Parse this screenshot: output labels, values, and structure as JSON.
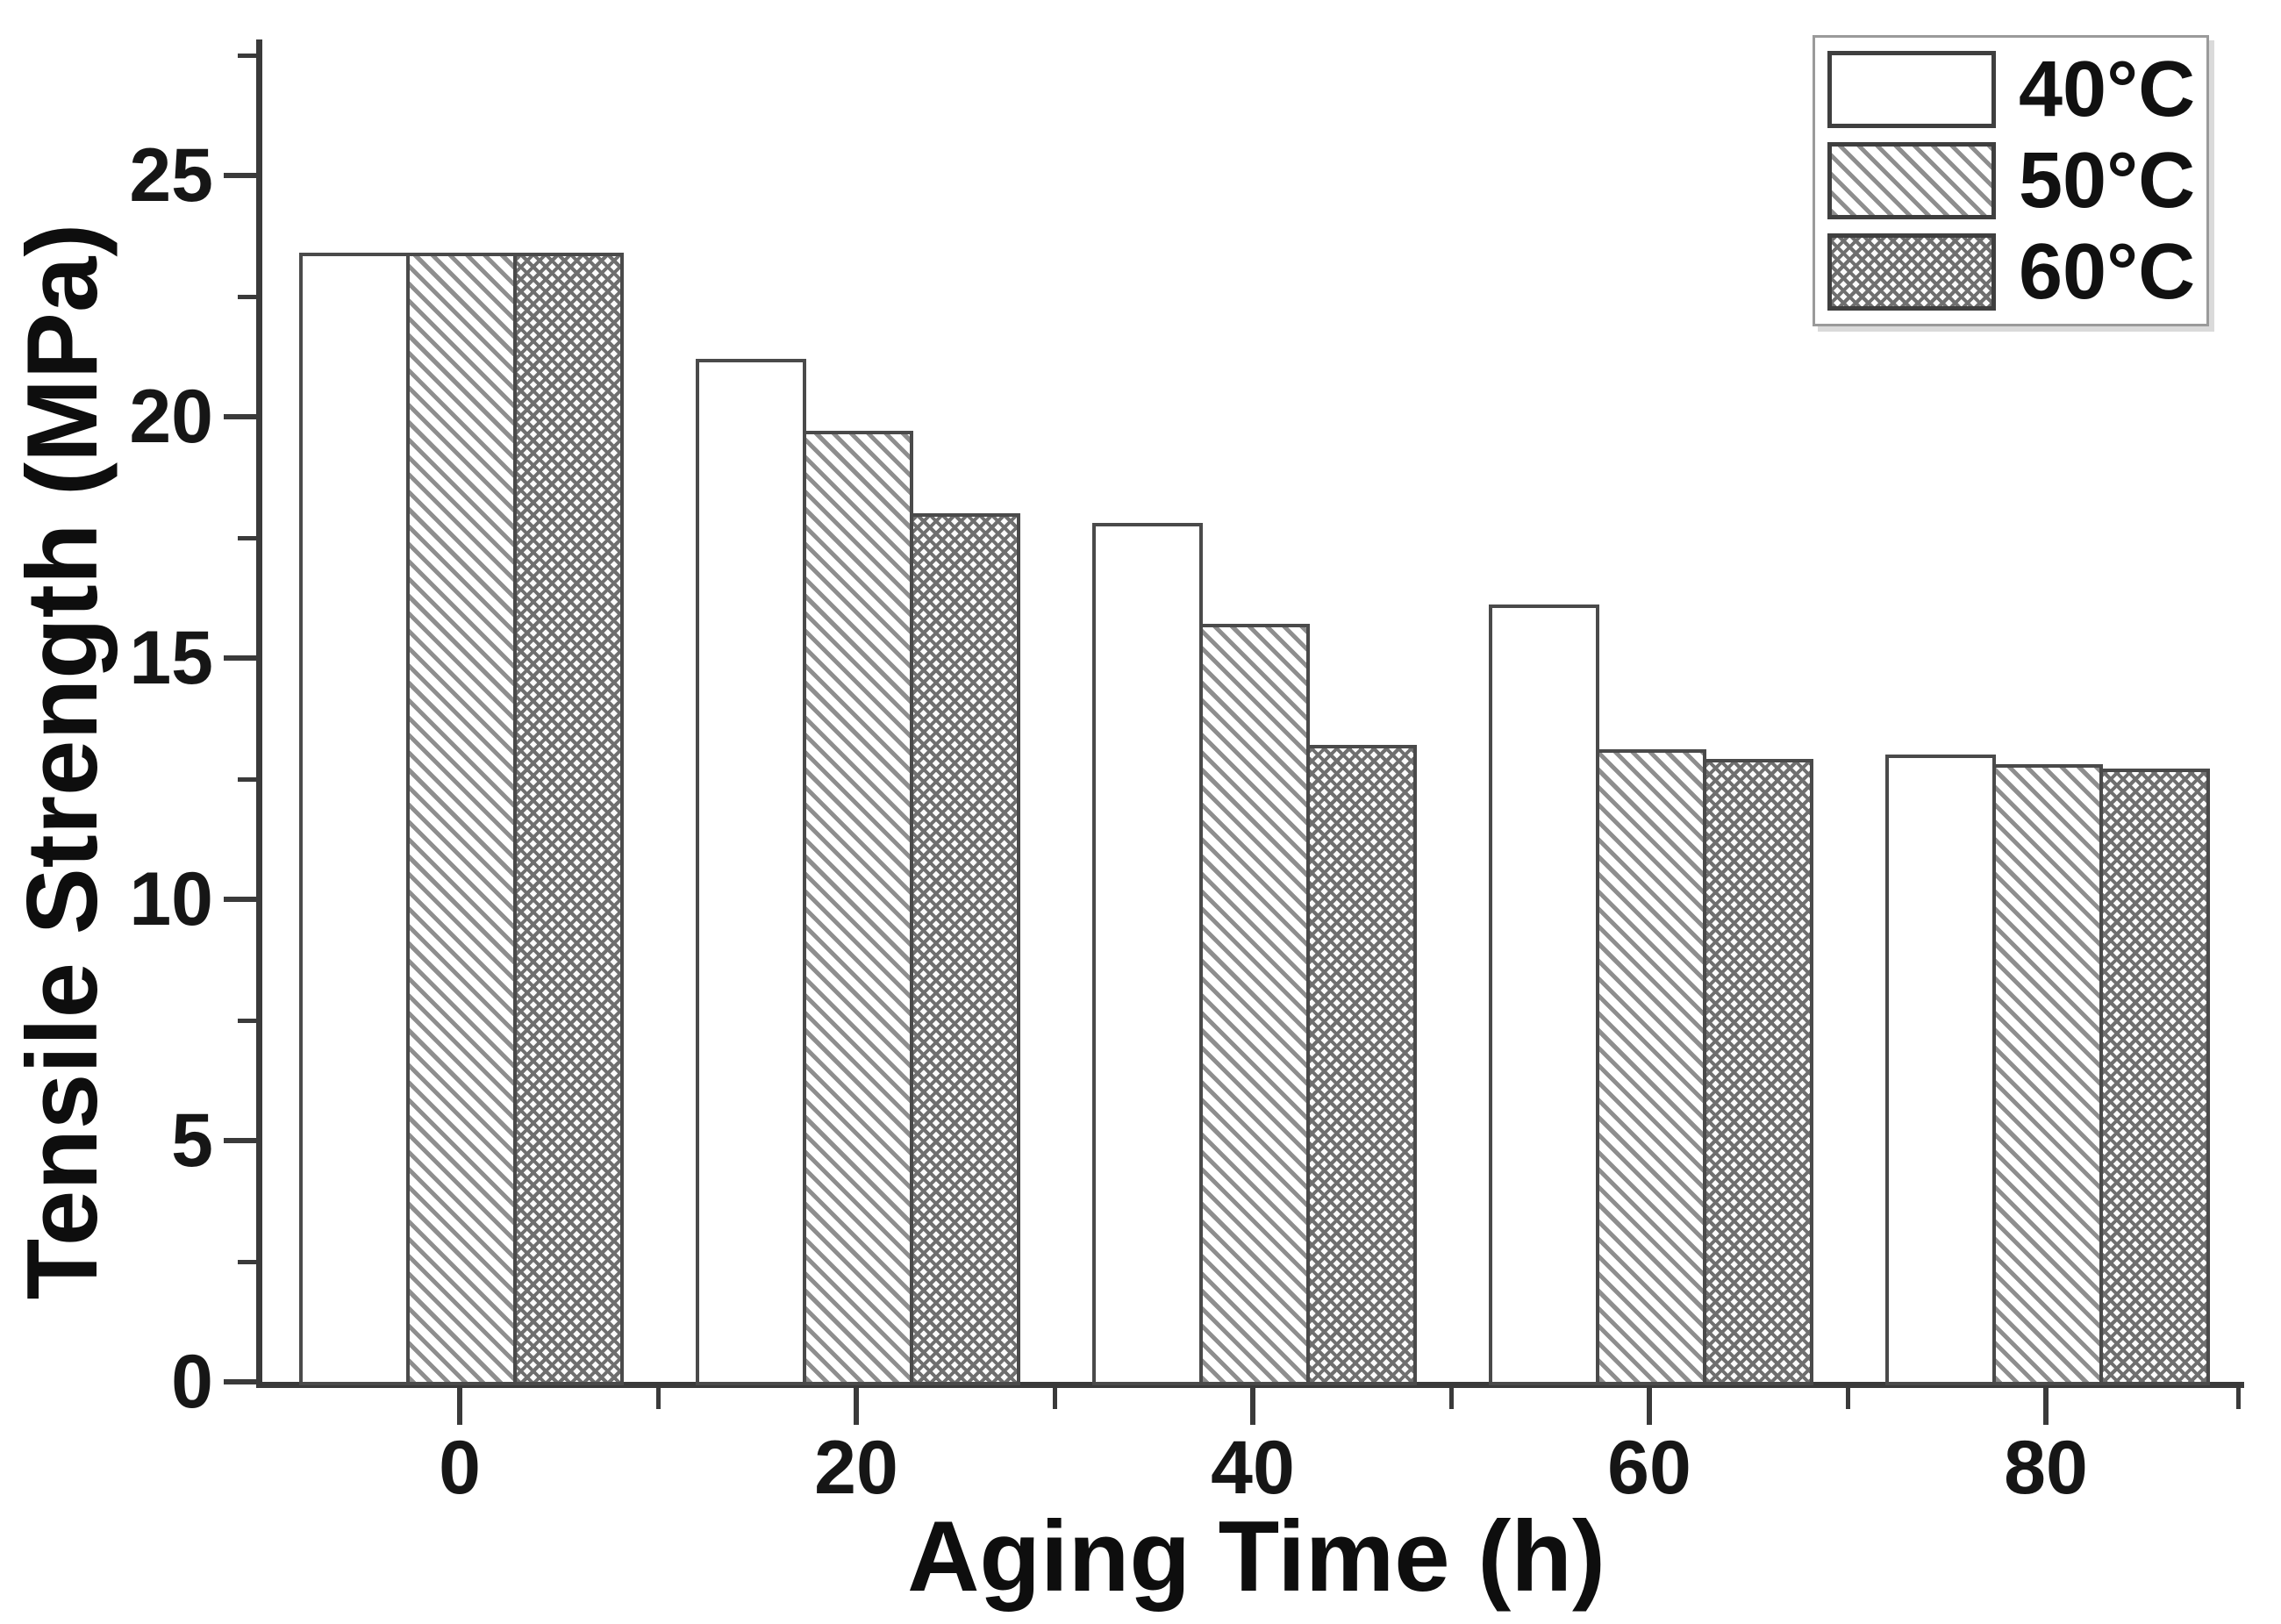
{
  "chart_data": {
    "type": "bar",
    "title": "",
    "xlabel": "Aging Time (h)",
    "ylabel": "Tensile Strength (MPa)",
    "categories": [
      "0",
      "20",
      "40",
      "60",
      "80"
    ],
    "series": [
      {
        "name": "40°C",
        "pattern": "white",
        "values": [
          23.4,
          21.2,
          17.8,
          16.1,
          13.0
        ]
      },
      {
        "name": "50°C",
        "pattern": "hatch",
        "values": [
          23.4,
          19.7,
          15.7,
          13.1,
          12.8
        ]
      },
      {
        "name": "60°C",
        "pattern": "cross",
        "values": [
          23.4,
          18.0,
          13.2,
          12.9,
          12.7
        ]
      }
    ],
    "ylim": [
      0,
      27.8
    ],
    "y_major_ticks": [
      0,
      5,
      10,
      15,
      20,
      25
    ],
    "y_minor_ticks": [
      2.5,
      7.5,
      12.5,
      17.5,
      22.5,
      27.5
    ],
    "x_minor_ticks_h": [
      10,
      30,
      50,
      70,
      90
    ],
    "legend_position": "top-right",
    "grid": false,
    "colors": {
      "axis": "#3a3a3a",
      "text": "#111111",
      "bar_border": "#4a4a4a",
      "hatch_line": "#8e8e8e",
      "background": "#ffffff"
    }
  }
}
